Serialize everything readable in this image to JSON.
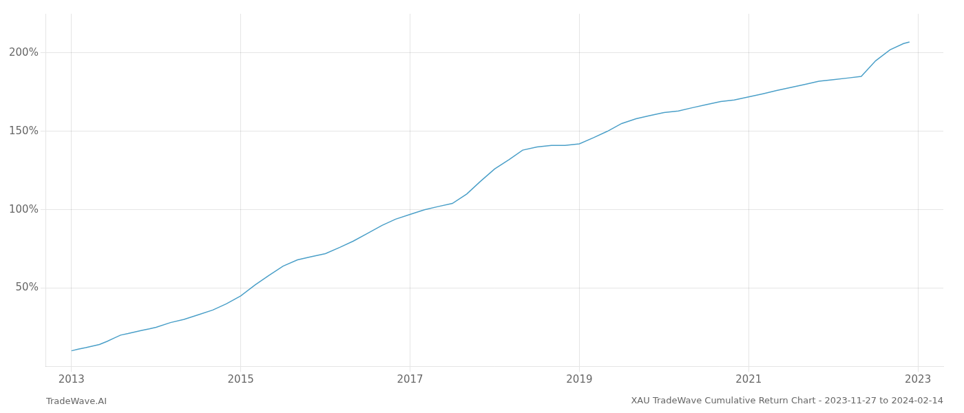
{
  "chart_data": {
    "type": "line",
    "title": "XAU TradeWave Cumulative Return Chart - 2023-11-27 to 2024-02-14",
    "annotations": [
      "TradeWave.AI"
    ],
    "x": [
      2013.0,
      2013.08,
      2013.17,
      2013.25,
      2013.33,
      2013.42,
      2013.5,
      2013.58,
      2013.67,
      2013.75,
      2013.83,
      2013.92,
      2014.0,
      2014.17,
      2014.33,
      2014.5,
      2014.67,
      2014.83,
      2015.0,
      2015.17,
      2015.33,
      2015.5,
      2015.67,
      2015.83,
      2016.0,
      2016.17,
      2016.33,
      2016.5,
      2016.67,
      2016.83,
      2017.0,
      2017.17,
      2017.33,
      2017.5,
      2017.67,
      2017.83,
      2018.0,
      2018.17,
      2018.33,
      2018.5,
      2018.67,
      2018.83,
      2019.0,
      2019.17,
      2019.33,
      2019.5,
      2019.67,
      2019.83,
      2020.0,
      2020.17,
      2020.33,
      2020.5,
      2020.67,
      2020.83,
      2021.0,
      2021.17,
      2021.33,
      2021.5,
      2021.67,
      2021.83,
      2022.0,
      2022.17,
      2022.33,
      2022.5,
      2022.67,
      2022.83,
      2022.9
    ],
    "values": [
      10,
      11,
      12,
      13,
      14,
      16,
      18,
      20,
      21,
      22,
      23,
      24,
      25,
      28,
      30,
      33,
      36,
      40,
      45,
      52,
      58,
      64,
      68,
      70,
      72,
      76,
      80,
      85,
      90,
      94,
      97,
      100,
      102,
      104,
      110,
      118,
      126,
      132,
      138,
      140,
      141,
      141,
      142,
      146,
      150,
      155,
      158,
      160,
      162,
      163,
      165,
      167,
      169,
      170,
      172,
      174,
      176,
      178,
      180,
      182,
      183,
      184,
      185,
      195,
      202,
      206,
      207
    ],
    "color": "#4a9fc8",
    "xlim": [
      2012.7,
      2023.3
    ],
    "xticks": [
      2013,
      2015,
      2017,
      2019,
      2021,
      2023
    ],
    "ylim": [
      0,
      225
    ],
    "yticks": [
      {
        "value": 50,
        "label": "50%"
      },
      {
        "value": 100,
        "label": "100%"
      },
      {
        "value": 150,
        "label": "150%"
      },
      {
        "value": 200,
        "label": "200%"
      }
    ],
    "grid": true
  }
}
